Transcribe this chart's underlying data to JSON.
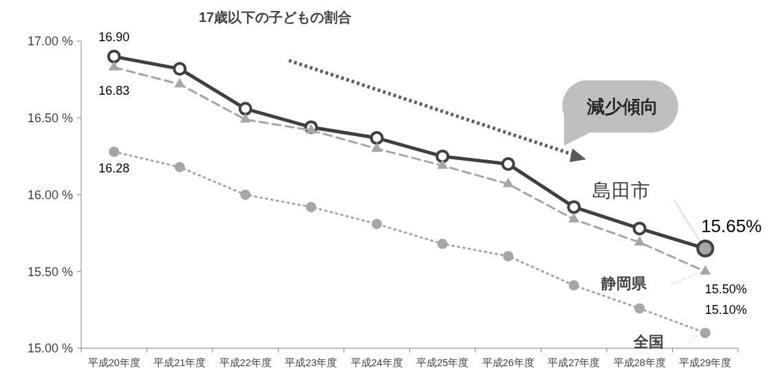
{
  "chart_data": {
    "type": "line",
    "title": "17歳以下の子どもの割合",
    "categories": [
      "平成20年度",
      "平成21年度",
      "平成22年度",
      "平成23年度",
      "平成24年度",
      "平成25年度",
      "平成26年度",
      "平成27年度",
      "平成28年度",
      "平成29年度"
    ],
    "series": [
      {
        "name": "島田市",
        "color": "#404040",
        "marker": "circle",
        "line_style": "solid",
        "values": [
          16.9,
          16.82,
          16.56,
          16.44,
          16.37,
          16.25,
          16.2,
          15.92,
          15.78,
          15.65
        ],
        "value_labels": [
          "16.90",
          null,
          null,
          null,
          null,
          null,
          null,
          null,
          null,
          "15.65%"
        ]
      },
      {
        "name": "静岡県",
        "color": "#a6a6a6",
        "marker": "triangle",
        "line_style": "dashed",
        "values": [
          16.83,
          16.72,
          16.49,
          16.42,
          16.3,
          16.19,
          16.07,
          15.84,
          15.69,
          15.5
        ],
        "value_labels": [
          "16.83",
          null,
          null,
          null,
          null,
          null,
          null,
          null,
          null,
          "15.50%"
        ]
      },
      {
        "name": "全国",
        "color": "#a6a6a6",
        "marker": "circle",
        "line_style": "dotted",
        "values": [
          16.28,
          16.18,
          16.0,
          15.92,
          15.81,
          15.68,
          15.6,
          15.41,
          15.26,
          15.1
        ],
        "value_labels": [
          "16.28",
          null,
          null,
          null,
          null,
          null,
          null,
          null,
          null,
          "15.10%"
        ]
      }
    ],
    "ylim": [
      15,
      17
    ],
    "yticks": [
      {
        "value": 15,
        "label": "15.00 %"
      },
      {
        "value": 15.5,
        "label": "15.50 %"
      },
      {
        "value": 16,
        "label": "16.00 %"
      },
      {
        "value": 16.5,
        "label": "16.50 %"
      },
      {
        "value": 17,
        "label": "17.00 %"
      }
    ],
    "legend": "right",
    "grid": false,
    "annotations": [
      "減少傾向"
    ]
  }
}
